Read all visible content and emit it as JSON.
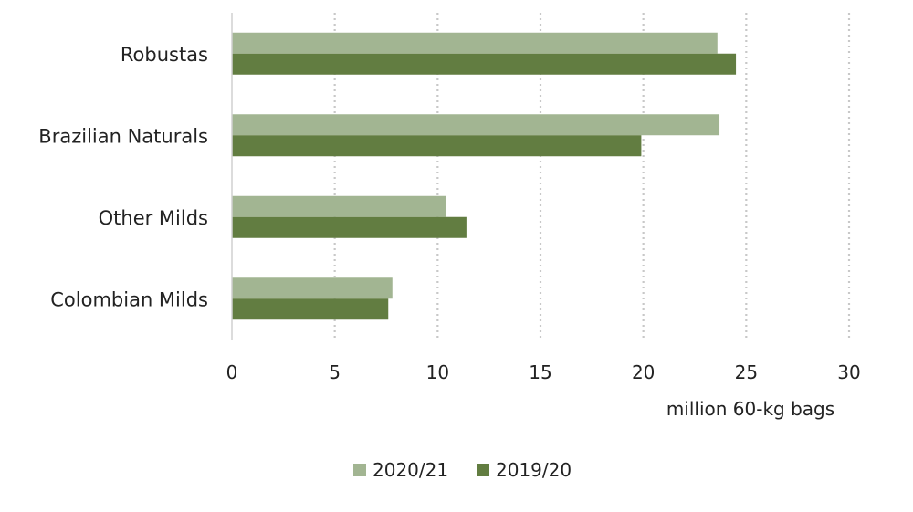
{
  "chart_data": {
    "type": "bar",
    "orientation": "horizontal",
    "categories": [
      "Robustas",
      "Brazilian Naturals",
      "Other Milds",
      "Colombian Milds"
    ],
    "series": [
      {
        "name": "2020/21",
        "color": "#a2b592",
        "values": [
          23.6,
          23.7,
          10.4,
          7.8
        ]
      },
      {
        "name": "2019/20",
        "color": "#627d41",
        "values": [
          24.5,
          19.9,
          11.4,
          7.6
        ]
      }
    ],
    "x_ticks": [
      "0",
      "5",
      "10",
      "15",
      "20",
      "25",
      "30"
    ],
    "xlim": [
      0,
      30
    ],
    "xlabel": "million 60-kg bags",
    "title": "",
    "grid": "vertical dotted",
    "legend_position": "bottom"
  }
}
